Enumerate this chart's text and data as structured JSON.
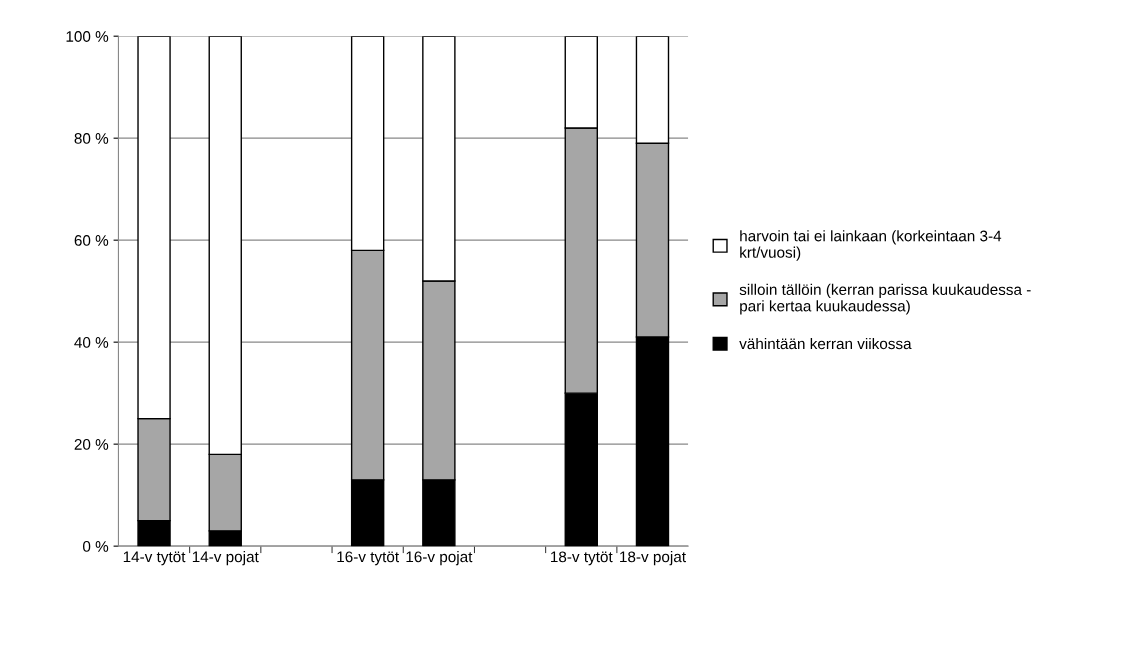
{
  "chart_data": {
    "type": "bar",
    "stacked": true,
    "categories": [
      "14-v tytöt",
      "14-v pojat",
      null,
      "16-v tytöt",
      "16-v pojat",
      null,
      "18-v tytöt",
      "18-v pojat"
    ],
    "series": [
      {
        "name": "vähintään kerran viikossa",
        "color": "#000000",
        "values": [
          5,
          3,
          null,
          13,
          13,
          null,
          30,
          41
        ]
      },
      {
        "name": "silloin tällöin (kerran parissa kuukaudessa - pari kertaa kuukaudessa)",
        "color": "#a6a6a6",
        "values": [
          20,
          15,
          null,
          45,
          39,
          null,
          52,
          38
        ]
      },
      {
        "name": "harvoin tai ei lainkaan (korkeintaan 3-4 krt/vuosi)",
        "color": "#ffffff",
        "values": [
          75,
          82,
          null,
          42,
          48,
          null,
          18,
          21
        ]
      }
    ],
    "ylim": [
      0,
      100
    ],
    "yticks": [
      {
        "value": 0,
        "label": "0 %"
      },
      {
        "value": 20,
        "label": "20 %"
      },
      {
        "value": 40,
        "label": "40 %"
      },
      {
        "value": 60,
        "label": "60 %"
      },
      {
        "value": 80,
        "label": "80 %"
      },
      {
        "value": 100,
        "label": "100 %"
      }
    ],
    "grid": "y",
    "legend": "right"
  }
}
